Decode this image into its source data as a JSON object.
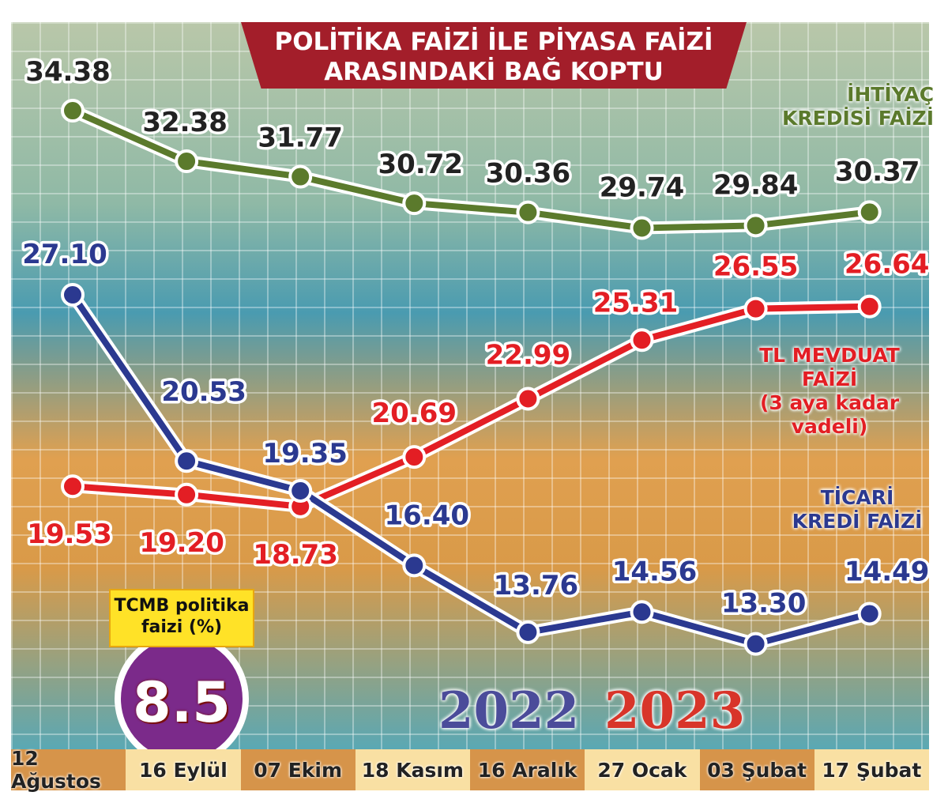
{
  "chart_data": {
    "type": "line",
    "title": "POLİTİKA FAİZİ İLE PİYASA FAİZİ ARASINDAKİ BAĞ KOPTU",
    "title_lines": [
      "POLİTİKA FAİZİ İLE PİYASA FAİZİ",
      "ARASINDAKİ BAĞ KOPTU"
    ],
    "categories": [
      "12 Ağustos",
      "16 Eylül",
      "07 Ekim",
      "18 Kasım",
      "16 Aralık",
      "27 Ocak",
      "03 Şubat",
      "17 Şubat"
    ],
    "years": [
      "2022",
      "2023"
    ],
    "series": [
      {
        "name": "İHTİYAÇ KREDİSİ FAİZİ",
        "name_lines": [
          "İHTİYAÇ",
          "KREDİSİ FAİZİ"
        ],
        "color": "#5b7a2c",
        "label_color": "#222222",
        "values": [
          34.38,
          32.38,
          31.77,
          30.72,
          30.36,
          29.74,
          29.84,
          30.37
        ]
      },
      {
        "name": "TL MEVDUAT FAİZİ (3 aya kadar vadeli)",
        "name_lines": [
          "TL MEVDUAT",
          "FAİZİ",
          "(3 aya kadar",
          "vadeli)"
        ],
        "color": "#e31e24",
        "label_color": "#e31e24",
        "values": [
          19.53,
          19.2,
          18.73,
          20.69,
          22.99,
          25.31,
          26.55,
          26.64
        ]
      },
      {
        "name": "TİCARİ KREDİ FAİZİ",
        "name_lines": [
          "TİCARİ",
          "KREDİ FAİZİ"
        ],
        "color": "#2b3990",
        "label_color": "#2b3990",
        "values": [
          27.1,
          20.53,
          19.35,
          16.4,
          13.76,
          14.56,
          13.3,
          14.49
        ]
      }
    ],
    "ylim": [
      12,
      36
    ],
    "xlabel": "",
    "ylabel": "",
    "grid": true
  },
  "badge": {
    "label_lines": [
      "TCMB politika",
      "faizi (%)"
    ],
    "value": "8.5"
  }
}
